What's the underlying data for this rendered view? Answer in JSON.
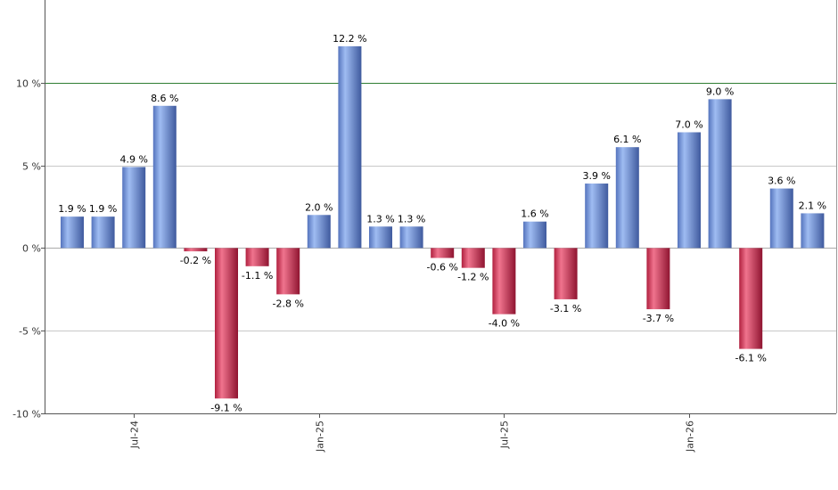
{
  "chart_data": {
    "type": "bar",
    "title": "",
    "xlabel": "",
    "ylabel": "",
    "ylim": [
      -10,
      15
    ],
    "y_ticks": [
      -10,
      -5,
      0,
      5,
      10
    ],
    "y_tick_labels": [
      "-10 %",
      "-5 %",
      "0 %",
      "5 %",
      "10 %"
    ],
    "x_tick_labels": [
      {
        "label": "Jul-24",
        "index": 2
      },
      {
        "label": "Jan-25",
        "index": 8
      },
      {
        "label": "Jul-25",
        "index": 14
      },
      {
        "label": "Jan-26",
        "index": 20
      }
    ],
    "reference_line": {
      "value": 10,
      "color": "#2e7d32"
    },
    "grid": true,
    "legend": "none",
    "colors": {
      "positive": "#6f93d8",
      "negative": "#c8314e"
    },
    "values": [
      1.9,
      1.9,
      4.9,
      8.6,
      -0.2,
      -9.1,
      -1.1,
      -2.8,
      2.0,
      12.2,
      1.3,
      1.3,
      -0.6,
      -1.2,
      -4.0,
      1.6,
      -3.1,
      3.9,
      6.1,
      -3.7,
      7.0,
      9.0,
      -6.1,
      3.6,
      2.1
    ],
    "data_labels": [
      "1.9 %",
      "1.9 %",
      "4.9 %",
      "8.6 %",
      "-0.2 %",
      "-9.1 %",
      "-1.1 %",
      "-2.8 %",
      "2.0 %",
      "12.2 %",
      "1.3 %",
      "1.3 %",
      "-0.6 %",
      "-1.2 %",
      "-4.0 %",
      "1.6 %",
      "-3.1 %",
      "3.9 %",
      "6.1 %",
      "-3.7 %",
      "7.0 %",
      "9.0 %",
      "-6.1 %",
      "3.6 %",
      "2.1 %"
    ]
  }
}
